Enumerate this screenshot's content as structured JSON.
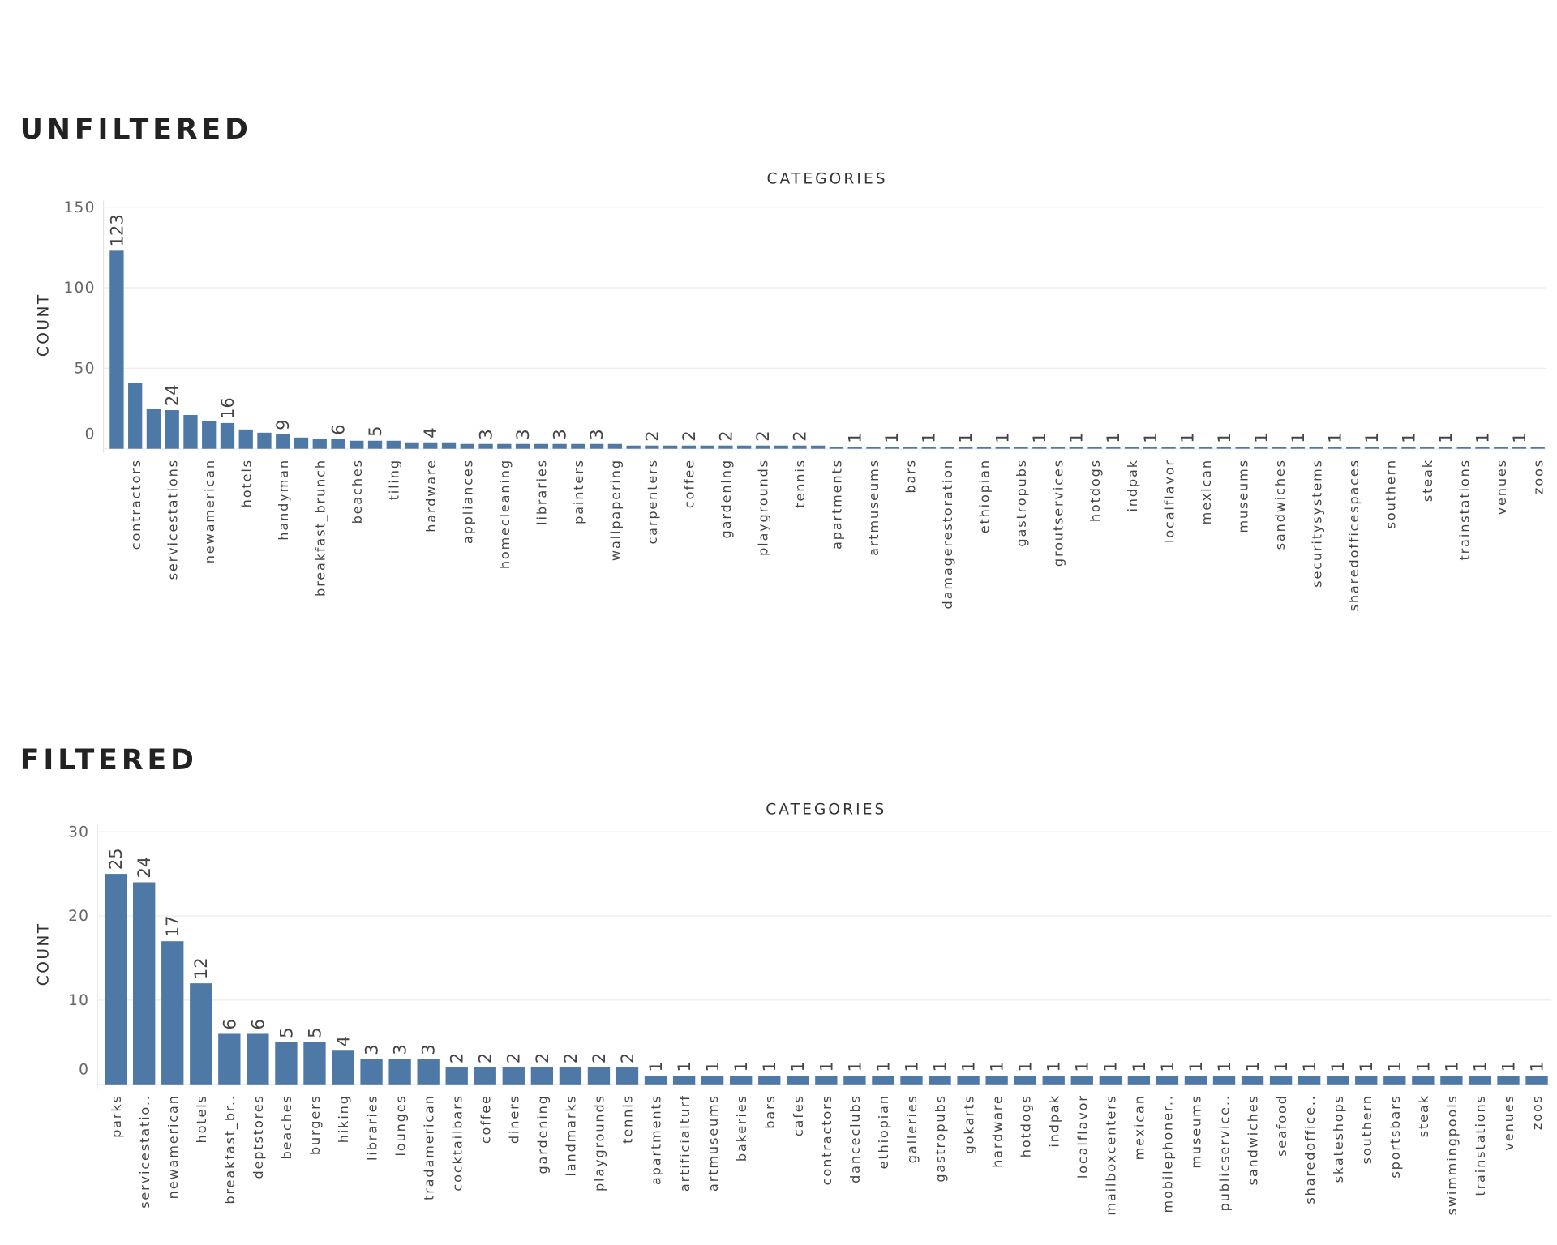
{
  "chart_data": [
    {
      "type": "bar",
      "heading": "UNFILTERED",
      "x_label": "CATEGORIES",
      "y_label": "COUNT",
      "color": "#4e79a7",
      "grid": true,
      "ylim": [
        0,
        154
      ],
      "yticks": [
        0,
        50,
        100,
        150
      ],
      "categories": [
        null,
        "contractors",
        null,
        "servicestations",
        null,
        "newamerican",
        null,
        "hotels",
        null,
        "handyman",
        null,
        "breakfast_brunch",
        null,
        "beaches",
        null,
        "tiling",
        null,
        "hardware",
        null,
        "appliances",
        null,
        "homecleaning",
        null,
        "libraries",
        null,
        "painters",
        null,
        "wallpapering",
        null,
        "carpenters",
        null,
        "coffee",
        null,
        "gardening",
        null,
        "playgrounds",
        null,
        "tennis",
        null,
        "apartments",
        null,
        "artmuseums",
        null,
        "bars",
        null,
        "damagerestoration",
        null,
        "ethiopian",
        null,
        "gastropubs",
        null,
        "groutservices",
        null,
        "hotdogs",
        null,
        "indpak",
        null,
        "localflavor",
        null,
        "mexican",
        null,
        "museums",
        null,
        "sandwiches",
        null,
        "securitysystems",
        null,
        "sharedofficespaces",
        null,
        "southern",
        null,
        "steak",
        null,
        "trainstations",
        null,
        "venues",
        null,
        "zoos"
      ],
      "values": [
        123,
        41,
        25,
        24,
        21,
        17,
        16,
        12,
        10,
        9,
        7,
        6,
        6,
        5,
        5,
        5,
        4,
        4,
        4,
        3,
        3,
        3,
        3,
        3,
        3,
        3,
        3,
        3,
        2,
        2,
        2,
        2,
        2,
        2,
        2,
        2,
        2,
        2,
        2,
        1,
        1,
        1,
        1,
        1,
        1,
        1,
        1,
        1,
        1,
        1,
        1,
        1,
        1,
        1,
        1,
        1,
        1,
        1,
        1,
        1,
        1,
        1,
        1,
        1,
        1,
        1,
        1,
        1,
        1,
        1,
        1,
        1,
        1,
        1,
        1,
        1,
        1,
        1
      ],
      "value_labels": [
        "123",
        null,
        null,
        "24",
        null,
        null,
        "16",
        null,
        null,
        "9",
        null,
        null,
        "6",
        null,
        "5",
        null,
        null,
        "4",
        null,
        null,
        "3",
        null,
        "3",
        null,
        "3",
        null,
        "3",
        null,
        null,
        "2",
        null,
        "2",
        null,
        "2",
        null,
        "2",
        null,
        "2",
        null,
        null,
        "1",
        null,
        "1",
        null,
        "1",
        null,
        "1",
        null,
        "1",
        null,
        "1",
        null,
        "1",
        null,
        "1",
        null,
        "1",
        null,
        "1",
        null,
        "1",
        null,
        "1",
        null,
        "1",
        null,
        "1",
        null,
        "1",
        null,
        "1",
        null,
        "1",
        null,
        "1",
        null,
        "1",
        null
      ]
    },
    {
      "type": "bar",
      "heading": "FILTERED",
      "x_label": "CATEGORIES",
      "y_label": "COUNT",
      "color": "#4e79a7",
      "grid": true,
      "data_labels": true,
      "ylim": [
        0,
        31
      ],
      "yticks": [
        0,
        10,
        20,
        30
      ],
      "categories": [
        "parks",
        "servicestatio..",
        "newamerican",
        "hotels",
        "breakfast_br..",
        "deptstores",
        "beaches",
        "burgers",
        "hiking",
        "libraries",
        "lounges",
        "tradamerican",
        "cocktailbars",
        "coffee",
        "diners",
        "gardening",
        "landmarks",
        "playgrounds",
        "tennis",
        "apartments",
        "artificialturf",
        "artmuseums",
        "bakeries",
        "bars",
        "cafes",
        "contractors",
        "danceclubs",
        "ethiopian",
        "galleries",
        "gastropubs",
        "gokarts",
        "hardware",
        "hotdogs",
        "indpak",
        "localflavor",
        "mailboxcenters",
        "mexican",
        "mobilephoner..",
        "museums",
        "publicservice..",
        "sandwiches",
        "seafood",
        "sharedoffice..",
        "skateshops",
        "southern",
        "sportsbars",
        "steak",
        "swimmingpools",
        "trainstations",
        "venues",
        "zoos"
      ],
      "values": [
        25,
        24,
        17,
        12,
        6,
        6,
        5,
        5,
        4,
        3,
        3,
        3,
        2,
        2,
        2,
        2,
        2,
        2,
        2,
        1,
        1,
        1,
        1,
        1,
        1,
        1,
        1,
        1,
        1,
        1,
        1,
        1,
        1,
        1,
        1,
        1,
        1,
        1,
        1,
        1,
        1,
        1,
        1,
        1,
        1,
        1,
        1,
        1,
        1,
        1,
        1
      ]
    }
  ]
}
